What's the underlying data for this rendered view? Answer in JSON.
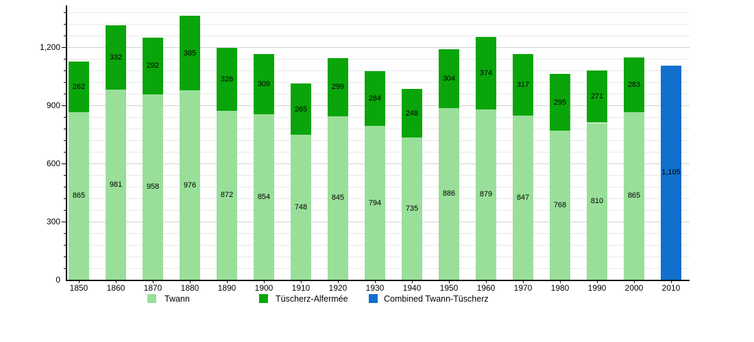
{
  "chart_data": {
    "type": "bar",
    "stacked": true,
    "title": "",
    "xlabel": "",
    "ylabel": "",
    "categories": [
      "1850",
      "1860",
      "1870",
      "1880",
      "1890",
      "1900",
      "1910",
      "1920",
      "1930",
      "1940",
      "1950",
      "1960",
      "1970",
      "1980",
      "1990",
      "2000",
      "2010"
    ],
    "series": [
      {
        "name": "Twann",
        "color": "#99df99",
        "values": [
          865,
          981,
          958,
          976,
          872,
          854,
          748,
          845,
          794,
          735,
          886,
          879,
          847,
          768,
          810,
          865,
          null
        ]
      },
      {
        "name": "Tüscherz-Alfermée",
        "color": "#0aa50a",
        "values": [
          262,
          332,
          292,
          385,
          326,
          309,
          265,
          299,
          284,
          248,
          304,
          374,
          317,
          295,
          271,
          283,
          null
        ]
      },
      {
        "name": "Combined Twann-Tüscherz",
        "color": "#1070cc",
        "values": [
          null,
          null,
          null,
          null,
          null,
          null,
          null,
          null,
          null,
          null,
          null,
          null,
          null,
          null,
          null,
          null,
          1105
        ]
      }
    ],
    "yticks": [
      0,
      300,
      600,
      900,
      1200
    ],
    "ylim": [
      0,
      1408
    ],
    "minor_grid_step": 60,
    "grid": true,
    "legend_position": "bottom",
    "value_labels": "centered-in-segment",
    "text_color": "#000000"
  }
}
